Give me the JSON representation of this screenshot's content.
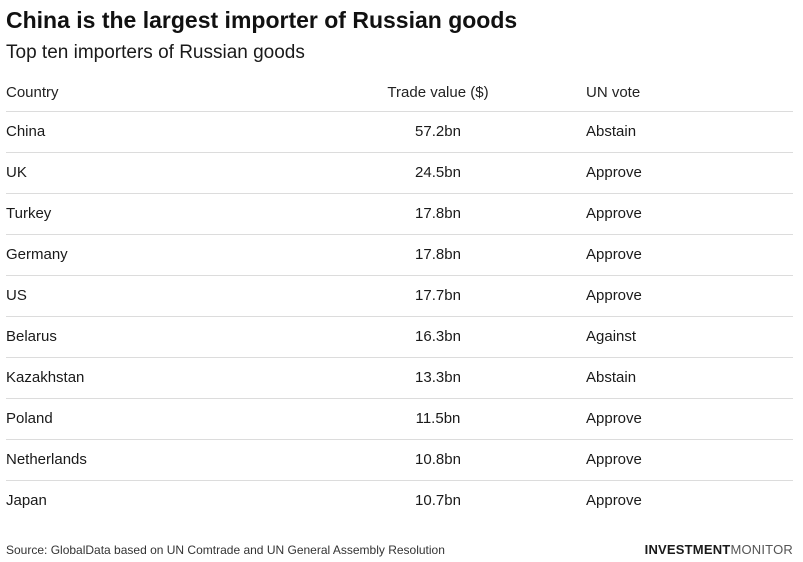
{
  "chart_data": {
    "type": "table",
    "title": "China is the largest importer of Russian goods",
    "subtitle": "Top ten importers of Russian goods",
    "columns": [
      "Country",
      "Trade value ($)",
      "UN vote"
    ],
    "rows": [
      {
        "country": "China",
        "trade_value": "57.2bn",
        "un_vote": "Abstain"
      },
      {
        "country": "UK",
        "trade_value": "24.5bn",
        "un_vote": "Approve"
      },
      {
        "country": "Turkey",
        "trade_value": "17.8bn",
        "un_vote": "Approve"
      },
      {
        "country": "Germany",
        "trade_value": "17.8bn",
        "un_vote": "Approve"
      },
      {
        "country": "US",
        "trade_value": "17.7bn",
        "un_vote": "Approve"
      },
      {
        "country": "Belarus",
        "trade_value": "16.3bn",
        "un_vote": "Against"
      },
      {
        "country": "Kazakhstan",
        "trade_value": "13.3bn",
        "un_vote": "Abstain"
      },
      {
        "country": "Poland",
        "trade_value": "11.5bn",
        "un_vote": "Approve"
      },
      {
        "country": "Netherlands",
        "trade_value": "10.8bn",
        "un_vote": "Approve"
      },
      {
        "country": "Japan",
        "trade_value": "10.7bn",
        "un_vote": "Approve"
      }
    ],
    "source": "Source: GlobalData based on UN Comtrade and UN General Assembly Resolution"
  },
  "brand": {
    "part1": "INVESTMENT",
    "part2": "MONITOR"
  }
}
